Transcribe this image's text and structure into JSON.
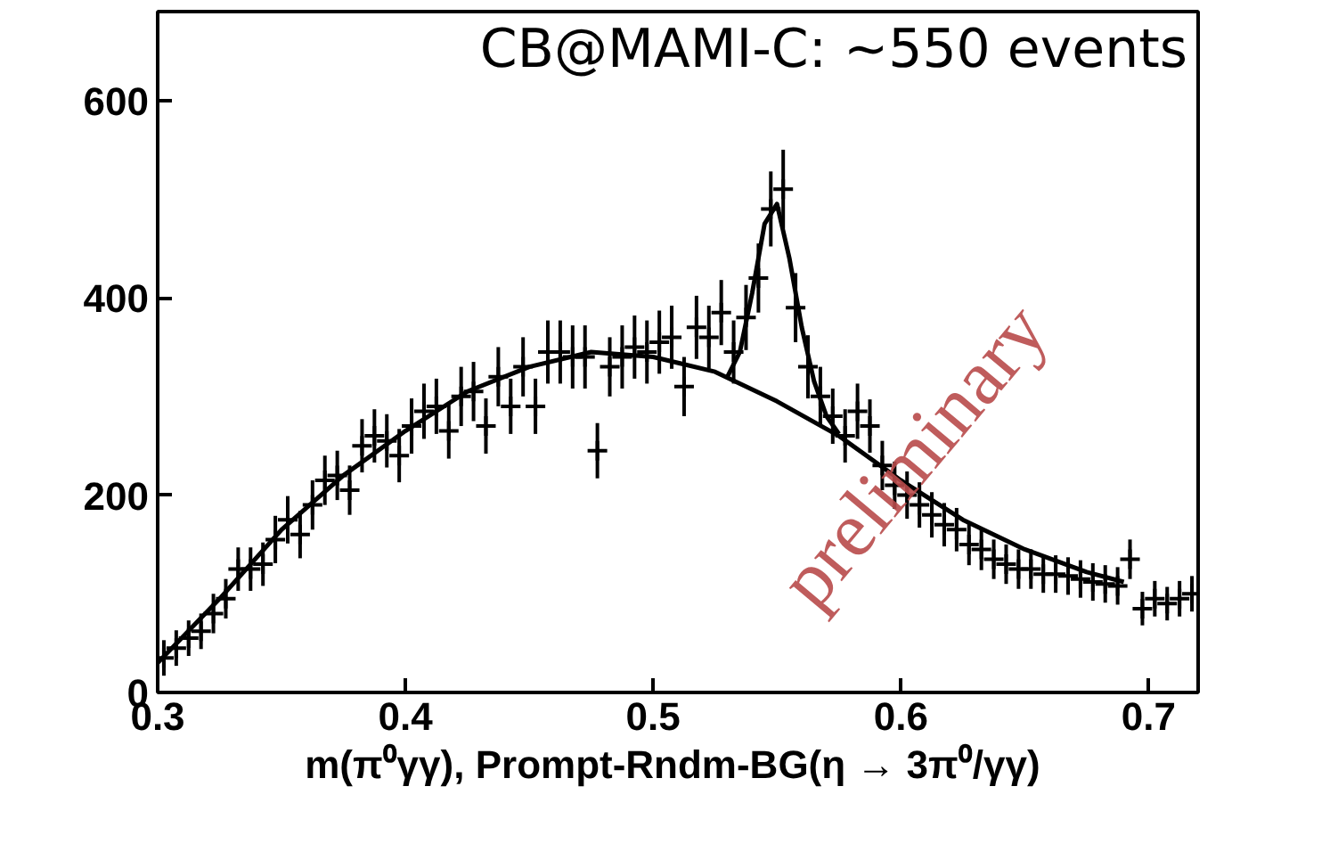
{
  "chart_data": {
    "type": "scatter",
    "xlabel": "m(π⁰γγ),  Prompt-Rndm-BG(η → 3π⁰/γγ)",
    "annotations": [
      "CB@MAMI-C: ~550 events",
      "preliminary"
    ],
    "xlim": [
      0.3,
      0.72
    ],
    "ylim": [
      0,
      690
    ],
    "xticks": [
      0.3,
      0.4,
      0.5,
      0.6,
      0.7
    ],
    "yticks": [
      0,
      200,
      400,
      600
    ],
    "grid": false,
    "series": [
      {
        "marker": "cross",
        "color": "#000000",
        "x": [
          0.3025,
          0.3075,
          0.3125,
          0.3175,
          0.3225,
          0.3275,
          0.3325,
          0.3375,
          0.3425,
          0.3475,
          0.3525,
          0.3575,
          0.3625,
          0.3675,
          0.3725,
          0.3775,
          0.3825,
          0.3875,
          0.3925,
          0.3975,
          0.4025,
          0.4075,
          0.4125,
          0.4175,
          0.4225,
          0.4275,
          0.4325,
          0.4375,
          0.4425,
          0.4475,
          0.4525,
          0.4575,
          0.4625,
          0.4675,
          0.4725,
          0.4775,
          0.4825,
          0.4875,
          0.4925,
          0.4975,
          0.5025,
          0.5075,
          0.5125,
          0.5175,
          0.5225,
          0.5275,
          0.5325,
          0.5375,
          0.5425,
          0.5475,
          0.5525,
          0.5575,
          0.5625,
          0.5675,
          0.5725,
          0.5775,
          0.5825,
          0.5875,
          0.5925,
          0.5975,
          0.6025,
          0.6075,
          0.6125,
          0.6175,
          0.6225,
          0.6275,
          0.6325,
          0.6375,
          0.6425,
          0.6475,
          0.6525,
          0.6575,
          0.6625,
          0.6675,
          0.6725,
          0.6775,
          0.6825,
          0.6875,
          0.6925,
          0.6975,
          0.7025,
          0.7075,
          0.7125,
          0.7175
        ],
        "values": [
          35,
          45,
          55,
          62,
          80,
          95,
          125,
          125,
          130,
          155,
          175,
          160,
          190,
          215,
          220,
          205,
          250,
          260,
          255,
          240,
          270,
          285,
          290,
          265,
          300,
          305,
          270,
          320,
          290,
          330,
          290,
          345,
          345,
          340,
          340,
          245,
          330,
          340,
          350,
          345,
          355,
          360,
          310,
          370,
          360,
          385,
          345,
          380,
          420,
          490,
          510,
          390,
          330,
          300,
          280,
          260,
          285,
          270,
          230,
          210,
          200,
          190,
          180,
          170,
          165,
          150,
          145,
          135,
          130,
          125,
          125,
          120,
          120,
          118,
          115,
          112,
          110,
          108,
          135,
          85,
          95,
          90,
          95,
          100
        ],
        "errors": [
          18,
          18,
          18,
          18,
          20,
          20,
          22,
          22,
          22,
          24,
          24,
          24,
          25,
          25,
          25,
          25,
          27,
          27,
          27,
          27,
          28,
          28,
          28,
          28,
          30,
          30,
          28,
          30,
          28,
          30,
          28,
          32,
          32,
          32,
          32,
          28,
          30,
          32,
          32,
          32,
          32,
          32,
          30,
          32,
          32,
          33,
          32,
          33,
          35,
          38,
          40,
          35,
          32,
          30,
          28,
          27,
          28,
          27,
          25,
          24,
          24,
          23,
          23,
          22,
          22,
          21,
          21,
          20,
          20,
          20,
          20,
          19,
          19,
          19,
          19,
          19,
          19,
          19,
          20,
          17,
          18,
          17,
          18,
          18
        ]
      },
      {
        "type": "line",
        "color": "#000000",
        "x": [
          0.3,
          0.325,
          0.35,
          0.375,
          0.4,
          0.425,
          0.45,
          0.475,
          0.5,
          0.525,
          0.55,
          0.575,
          0.6,
          0.625,
          0.65,
          0.675,
          0.69
        ],
        "values": [
          30,
          95,
          165,
          220,
          265,
          305,
          330,
          345,
          340,
          325,
          295,
          260,
          215,
          175,
          145,
          122,
          112
        ]
      },
      {
        "type": "line",
        "color": "#000000",
        "x": [
          0.53,
          0.535,
          0.54,
          0.545,
          0.55,
          0.555,
          0.56,
          0.565,
          0.57,
          0.575
        ],
        "values": [
          320,
          345,
          405,
          475,
          495,
          440,
          370,
          315,
          280,
          262
        ]
      }
    ]
  }
}
